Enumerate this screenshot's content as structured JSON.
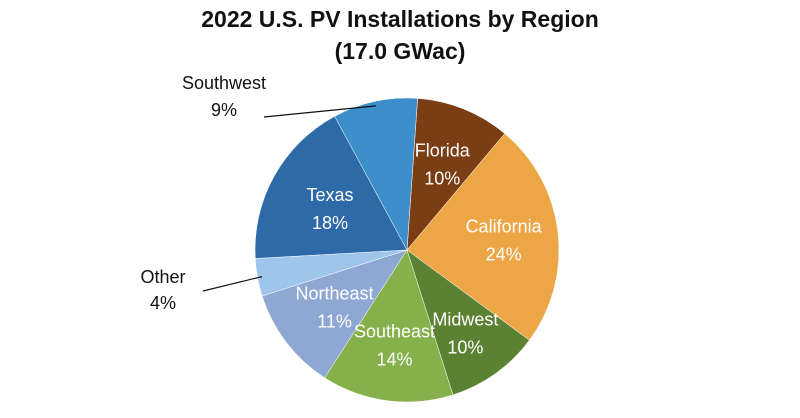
{
  "chart_data": {
    "type": "pie",
    "title": "2022 U.S. PV Installations by Region",
    "subtitle": "(17.0 GWac)",
    "slices": [
      {
        "label": "Florida",
        "value": 10,
        "value_label": "10%",
        "color": "#7a3d14",
        "label_color": "#ffffff",
        "label_position": "inside"
      },
      {
        "label": "California",
        "value": 24,
        "value_label": "24%",
        "color": "#eca646",
        "label_color": "#ffffff",
        "label_position": "inside"
      },
      {
        "label": "Midwest",
        "value": 10,
        "value_label": "10%",
        "color": "#5b8232",
        "label_color": "#ffffff",
        "label_position": "inside"
      },
      {
        "label": "Southeast",
        "value": 14,
        "value_label": "14%",
        "color": "#86b04b",
        "label_color": "#ffffff",
        "label_position": "inside"
      },
      {
        "label": "Northeast",
        "value": 11,
        "value_label": "11%",
        "color": "#8ea7d3",
        "label_color": "#ffffff",
        "label_position": "inside"
      },
      {
        "label": "Other",
        "value": 4,
        "value_label": "4%",
        "color": "#9ec5ea",
        "label_color": "#111111",
        "label_position": "outside-left"
      },
      {
        "label": "Texas",
        "value": 18,
        "value_label": "18%",
        "color": "#2f6aa8",
        "label_color": "#ffffff",
        "label_position": "inside"
      },
      {
        "label": "Southwest",
        "value": 9,
        "value_label": "9%",
        "color": "#3d8fcb",
        "label_color": "#111111",
        "label_position": "outside-top-left"
      }
    ],
    "legend": "none"
  }
}
